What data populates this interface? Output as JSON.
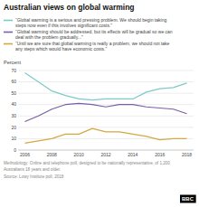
{
  "chart_data": {
    "type": "line",
    "title": "Australian views on global warming",
    "y_label": "Percent",
    "x": [
      2006,
      2007,
      2008,
      2009,
      2010,
      2011,
      2012,
      2013,
      2014,
      2015,
      2016,
      2017,
      2018
    ],
    "series": [
      {
        "name": "“Global warming is a serious and pressing problem. We should begin taking\nsteps now even if this involves significant costs.”",
        "color": "#7ecac9",
        "values": [
          68,
          60,
          52,
          48,
          45,
          44,
          45,
          45,
          45,
          51,
          54,
          55,
          59
        ]
      },
      {
        "name": "“Global warming should be addressed, but its effects will be gradual so we can\ndeal with the problem gradually...”",
        "color": "#7b5ea7",
        "values": [
          25,
          30,
          36,
          40,
          41,
          40,
          38,
          40,
          40,
          38,
          37,
          36,
          32
        ]
      },
      {
        "name": "“Until we are sure that global warming is really a problem, we should not take\nany steps which would have economic costs.”",
        "color": "#d4a843",
        "values": [
          6,
          8,
          10,
          14,
          14,
          19,
          16,
          16,
          14,
          12,
          9,
          10,
          10
        ]
      }
    ],
    "xlim": [
      2005.5,
      2018.5
    ],
    "xticks": [
      2006,
      2008,
      2010,
      2012,
      2014,
      2016,
      2018
    ],
    "ylim": [
      0,
      70
    ],
    "yticks": [
      0,
      10,
      20,
      30,
      40,
      50,
      60,
      70
    ],
    "grid": true,
    "legend": "top",
    "annotations": [
      "Methodology: Online and telephone poll, designed to be nationally representative, of 1,200",
      "Australians 18 years and older.",
      "Source: Lowy Institute poll, 2018",
      "BBC"
    ]
  }
}
